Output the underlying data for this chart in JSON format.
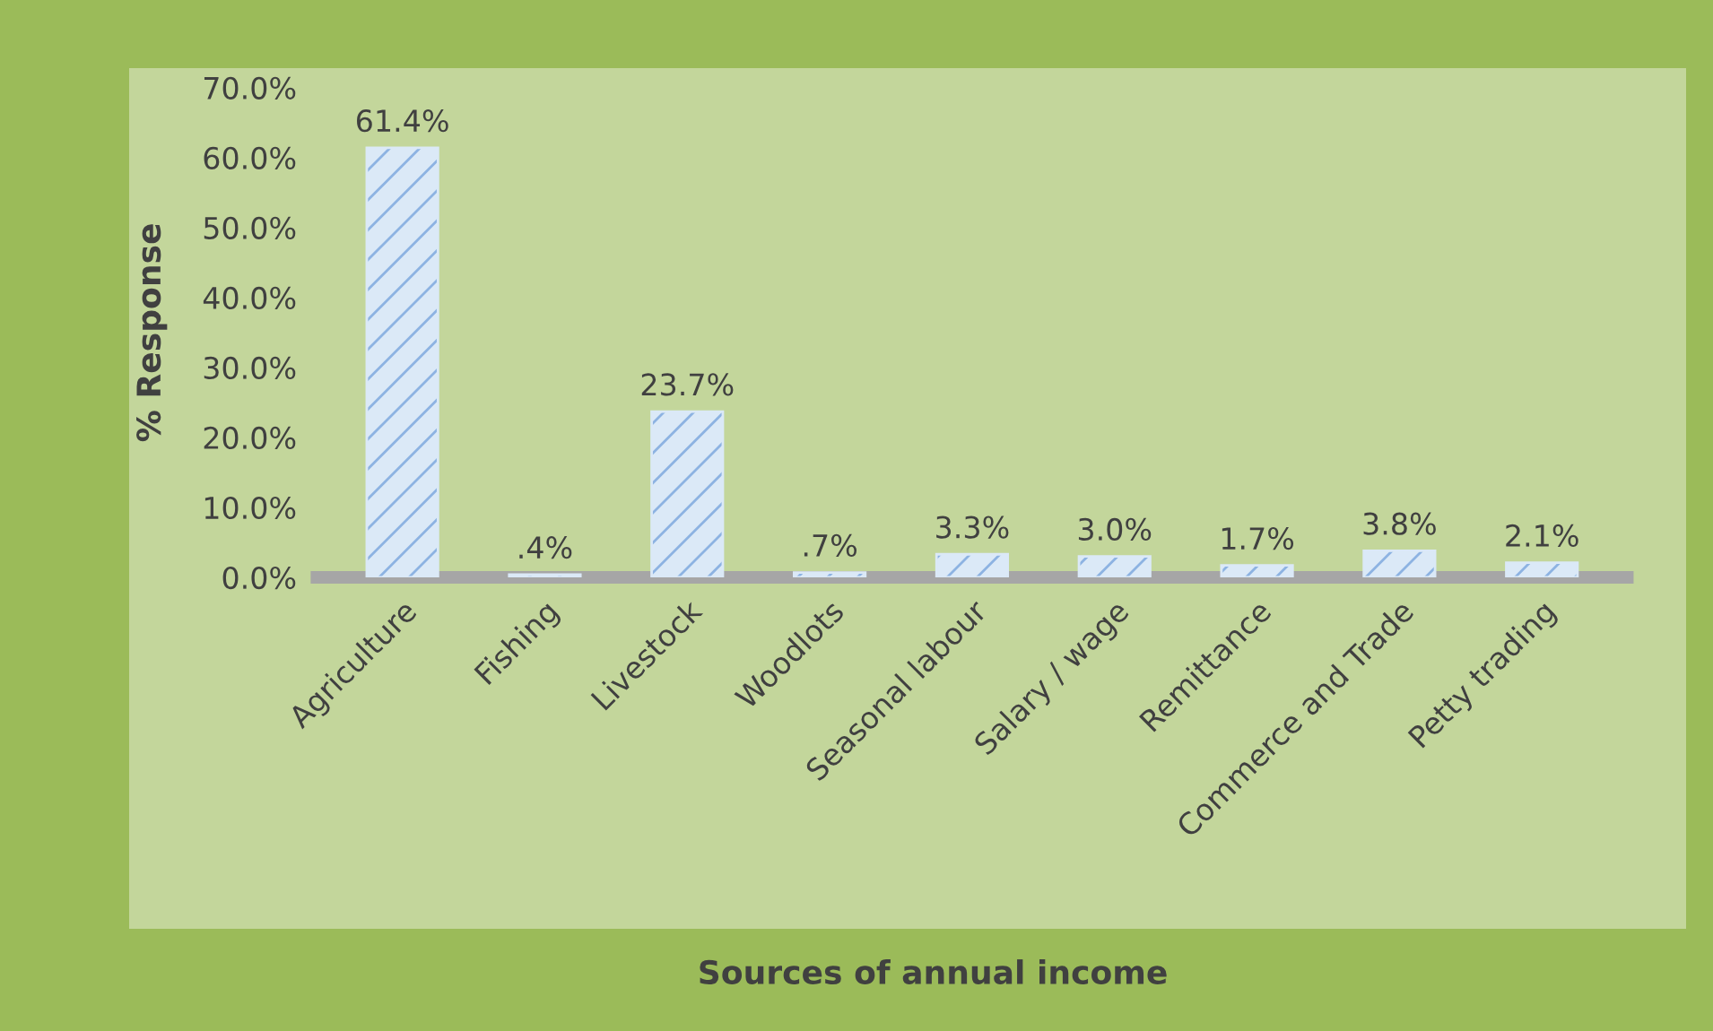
{
  "chart_data": {
    "type": "bar",
    "xlabel": "Sources of annual income",
    "ylabel": "% Response",
    "categories": [
      "Agriculture",
      "Fishing",
      "Livestock",
      "Woodlots",
      "Seasonal labour",
      "Salary / wage",
      "Remittance",
      "Commerce and Trade",
      "Petty trading"
    ],
    "values": [
      61.4,
      0.4,
      23.7,
      0.7,
      3.3,
      3.0,
      1.7,
      3.8,
      2.1
    ],
    "value_labels": [
      "61.4%",
      ".4%",
      "23.7%",
      ".7%",
      "3.3%",
      "3.0%",
      "1.7%",
      "3.8%",
      "2.1%"
    ],
    "color": "#dbe9f7",
    "ylim": [
      0,
      70
    ],
    "yticks": [
      {
        "value": 0,
        "label": "0.0%"
      },
      {
        "value": 10,
        "label": "10.0%"
      },
      {
        "value": 20,
        "label": "20.0%"
      },
      {
        "value": 30,
        "label": "30.0%"
      },
      {
        "value": 40,
        "label": "40.0%"
      },
      {
        "value": 50,
        "label": "50.0%"
      },
      {
        "value": 60,
        "label": "60.0%"
      },
      {
        "value": 70,
        "label": "70.0%"
      }
    ],
    "grid": false,
    "legend": false
  }
}
